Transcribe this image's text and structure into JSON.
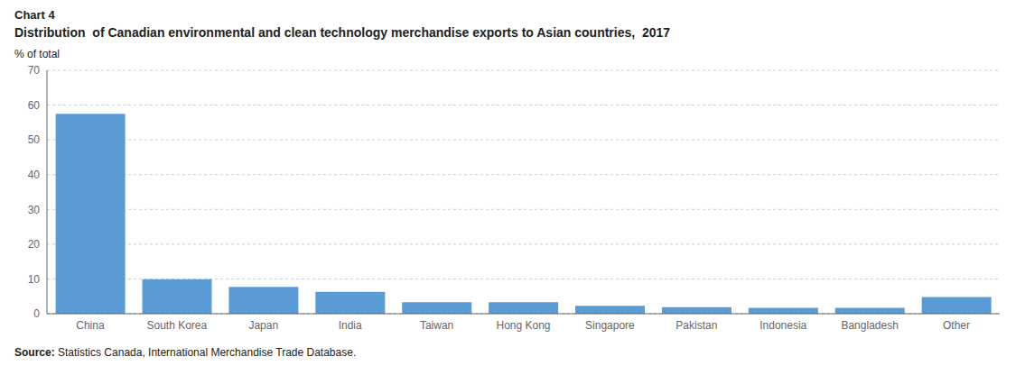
{
  "chart_data": {
    "type": "bar",
    "title": "Distribution  of Canadian environmental and clean technology merchandise exports to Asian countries,  2017",
    "ylabel": "% of total",
    "annotations": [
      "Chart 4",
      "Source: Statistics Canada, International Merchandise Trade Database."
    ],
    "categories": [
      "China",
      "South Korea",
      "Japan",
      "India",
      "Taiwan",
      "Hong Kong",
      "Singapore",
      "Pakistan",
      "Indonesia",
      "Bangladesh",
      "Other"
    ],
    "values": [
      57.5,
      9.9,
      7.7,
      6.3,
      3.3,
      3.3,
      2.3,
      1.9,
      1.7,
      1.7,
      4.8
    ],
    "color": "#5b9bd5",
    "ylim": [
      0,
      70
    ],
    "yticks": [
      0,
      10,
      20,
      30,
      40,
      50,
      60,
      70
    ],
    "grid": true
  }
}
